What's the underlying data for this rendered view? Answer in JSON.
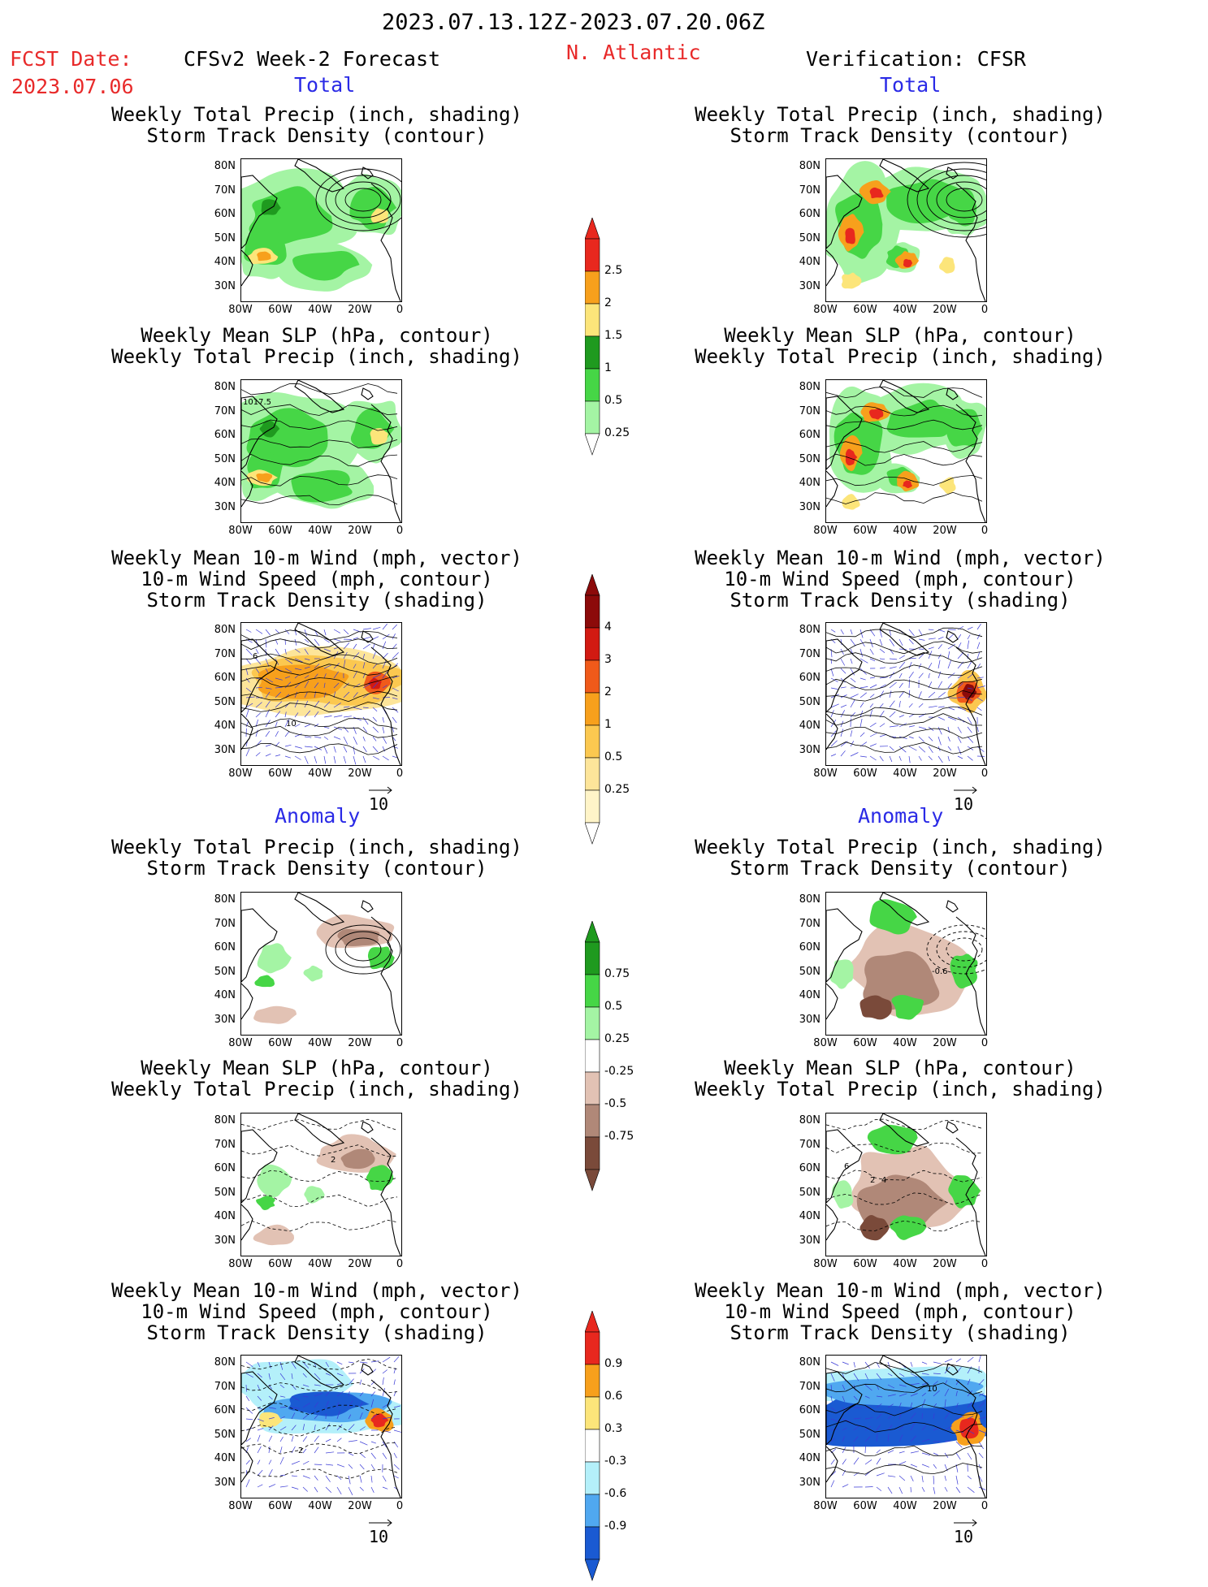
{
  "header": {
    "period": "2023.07.13.12Z-2023.07.20.06Z",
    "fcst_label": "FCST Date:",
    "fcst_date": "2023.07.06",
    "model": "CFSv2 Week-2 Forecast",
    "region": "N. Atlantic",
    "verification": "Verification: CFSR"
  },
  "sections": {
    "total": "Total",
    "anomaly": "Anomaly"
  },
  "titles": {
    "precip_track": [
      "Weekly Total Precip (inch, shading)",
      "Storm Track Density (contour)"
    ],
    "slp_precip": [
      "Weekly Mean SLP (hPa, contour)",
      "Weekly Total Precip (inch, shading)"
    ],
    "wind_track": [
      "Weekly Mean 10-m Wind (mph, vector)",
      "10-m Wind Speed (mph, contour)",
      "Storm Track Density (shading)"
    ]
  },
  "axes": {
    "lat_labels": [
      "80N",
      "70N",
      "60N",
      "50N",
      "40N",
      "30N"
    ],
    "lon_labels": [
      "80W",
      "60W",
      "40W",
      "20W",
      "0"
    ]
  },
  "vector_ref": "10",
  "map_labels": {
    "slp_contour": "1017.5",
    "wind_speed": "10",
    "wind_small": "6",
    "anom_track": "-0.6",
    "anom_slp_a": "2",
    "anom_slp_b": "4",
    "anom_slp_c": "6",
    "anom_wind": "10"
  },
  "colorbars": {
    "precip_total": {
      "labels": [
        "2.5",
        "2",
        "1.5",
        "1",
        "0.5",
        "0.25"
      ],
      "colors": [
        "#e8281e",
        "#f7a01c",
        "#fce57a",
        "#1f9a1f",
        "#46d646",
        "#a4f4a4"
      ]
    },
    "track_total": {
      "labels": [
        "4",
        "3",
        "2",
        "1",
        "0.5",
        "0.25"
      ],
      "colors": [
        "#8c0a0a",
        "#d21a12",
        "#f05a1a",
        "#f7a01c",
        "#fbc850",
        "#fde59a",
        "#fff4c8"
      ]
    },
    "precip_anom": {
      "labels": [
        "0.75",
        "0.5",
        "0.25",
        "-0.25",
        "-0.5",
        "-0.75"
      ],
      "colors": [
        "#1f9a1f",
        "#46d646",
        "#a4f4a4",
        "#ffffff",
        "#e2c2b4",
        "#b08878",
        "#7a4a3a"
      ]
    },
    "track_anom": {
      "labels": [
        "0.9",
        "0.6",
        "0.3",
        "-0.3",
        "-0.6",
        "-0.9"
      ],
      "colors": [
        "#e8281e",
        "#f7a01c",
        "#fce57a",
        "#ffffff",
        "#b4f0fa",
        "#50a8f0",
        "#1a5ad2"
      ]
    }
  }
}
